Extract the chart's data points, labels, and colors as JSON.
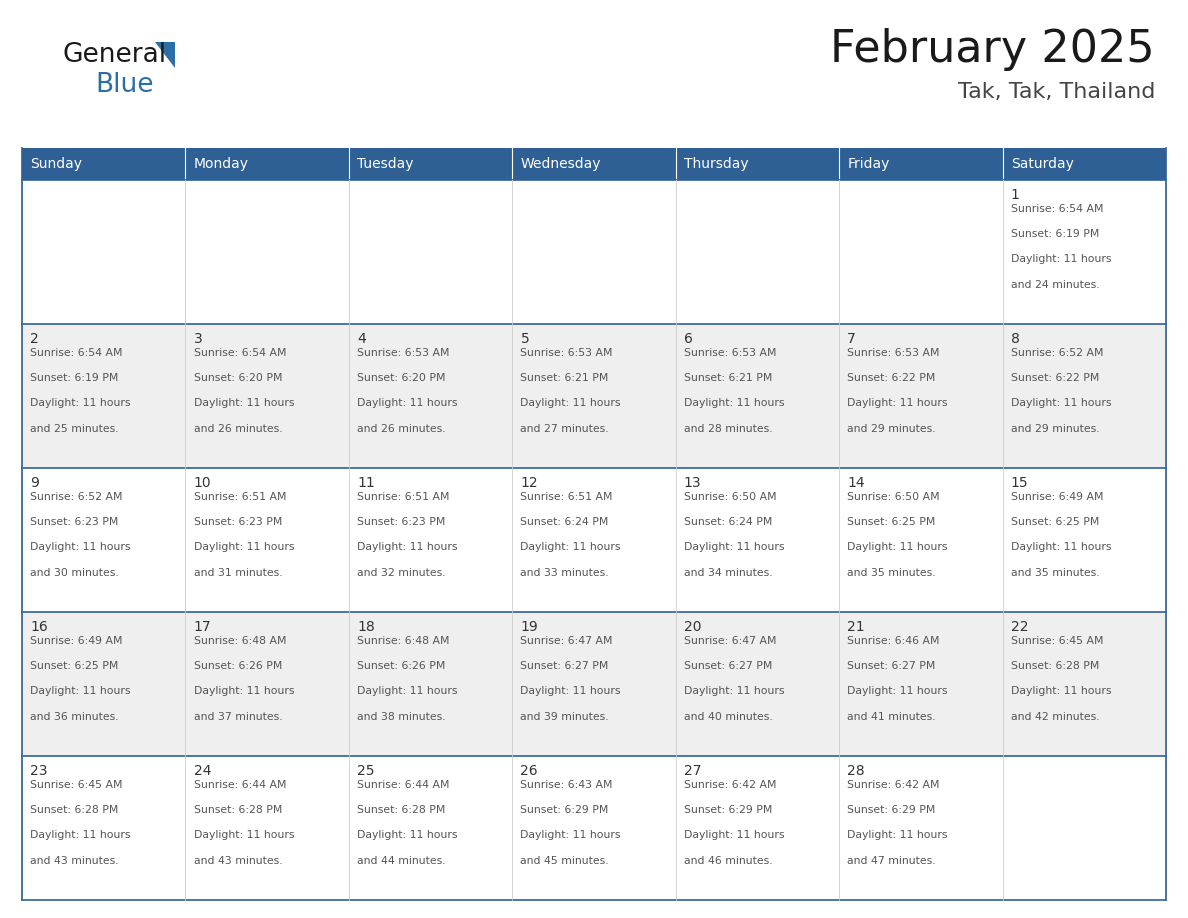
{
  "title": "February 2025",
  "subtitle": "Tak, Tak, Thailand",
  "header_bg": "#2E6096",
  "header_text_color": "#FFFFFF",
  "cell_bg_white": "#FFFFFF",
  "cell_bg_light": "#EFEFEF",
  "border_color": "#2E6096",
  "text_color": "#333333",
  "days_of_week": [
    "Sunday",
    "Monday",
    "Tuesday",
    "Wednesday",
    "Thursday",
    "Friday",
    "Saturday"
  ],
  "calendar_data": [
    [
      null,
      null,
      null,
      null,
      null,
      null,
      {
        "day": 1,
        "sunrise": "6:54 AM",
        "sunset": "6:19 PM",
        "daylight_hours": 11,
        "daylight_minutes": 24
      }
    ],
    [
      {
        "day": 2,
        "sunrise": "6:54 AM",
        "sunset": "6:19 PM",
        "daylight_hours": 11,
        "daylight_minutes": 25
      },
      {
        "day": 3,
        "sunrise": "6:54 AM",
        "sunset": "6:20 PM",
        "daylight_hours": 11,
        "daylight_minutes": 26
      },
      {
        "day": 4,
        "sunrise": "6:53 AM",
        "sunset": "6:20 PM",
        "daylight_hours": 11,
        "daylight_minutes": 26
      },
      {
        "day": 5,
        "sunrise": "6:53 AM",
        "sunset": "6:21 PM",
        "daylight_hours": 11,
        "daylight_minutes": 27
      },
      {
        "day": 6,
        "sunrise": "6:53 AM",
        "sunset": "6:21 PM",
        "daylight_hours": 11,
        "daylight_minutes": 28
      },
      {
        "day": 7,
        "sunrise": "6:53 AM",
        "sunset": "6:22 PM",
        "daylight_hours": 11,
        "daylight_minutes": 29
      },
      {
        "day": 8,
        "sunrise": "6:52 AM",
        "sunset": "6:22 PM",
        "daylight_hours": 11,
        "daylight_minutes": 29
      }
    ],
    [
      {
        "day": 9,
        "sunrise": "6:52 AM",
        "sunset": "6:23 PM",
        "daylight_hours": 11,
        "daylight_minutes": 30
      },
      {
        "day": 10,
        "sunrise": "6:51 AM",
        "sunset": "6:23 PM",
        "daylight_hours": 11,
        "daylight_minutes": 31
      },
      {
        "day": 11,
        "sunrise": "6:51 AM",
        "sunset": "6:23 PM",
        "daylight_hours": 11,
        "daylight_minutes": 32
      },
      {
        "day": 12,
        "sunrise": "6:51 AM",
        "sunset": "6:24 PM",
        "daylight_hours": 11,
        "daylight_minutes": 33
      },
      {
        "day": 13,
        "sunrise": "6:50 AM",
        "sunset": "6:24 PM",
        "daylight_hours": 11,
        "daylight_minutes": 34
      },
      {
        "day": 14,
        "sunrise": "6:50 AM",
        "sunset": "6:25 PM",
        "daylight_hours": 11,
        "daylight_minutes": 35
      },
      {
        "day": 15,
        "sunrise": "6:49 AM",
        "sunset": "6:25 PM",
        "daylight_hours": 11,
        "daylight_minutes": 35
      }
    ],
    [
      {
        "day": 16,
        "sunrise": "6:49 AM",
        "sunset": "6:25 PM",
        "daylight_hours": 11,
        "daylight_minutes": 36
      },
      {
        "day": 17,
        "sunrise": "6:48 AM",
        "sunset": "6:26 PM",
        "daylight_hours": 11,
        "daylight_minutes": 37
      },
      {
        "day": 18,
        "sunrise": "6:48 AM",
        "sunset": "6:26 PM",
        "daylight_hours": 11,
        "daylight_minutes": 38
      },
      {
        "day": 19,
        "sunrise": "6:47 AM",
        "sunset": "6:27 PM",
        "daylight_hours": 11,
        "daylight_minutes": 39
      },
      {
        "day": 20,
        "sunrise": "6:47 AM",
        "sunset": "6:27 PM",
        "daylight_hours": 11,
        "daylight_minutes": 40
      },
      {
        "day": 21,
        "sunrise": "6:46 AM",
        "sunset": "6:27 PM",
        "daylight_hours": 11,
        "daylight_minutes": 41
      },
      {
        "day": 22,
        "sunrise": "6:45 AM",
        "sunset": "6:28 PM",
        "daylight_hours": 11,
        "daylight_minutes": 42
      }
    ],
    [
      {
        "day": 23,
        "sunrise": "6:45 AM",
        "sunset": "6:28 PM",
        "daylight_hours": 11,
        "daylight_minutes": 43
      },
      {
        "day": 24,
        "sunrise": "6:44 AM",
        "sunset": "6:28 PM",
        "daylight_hours": 11,
        "daylight_minutes": 43
      },
      {
        "day": 25,
        "sunrise": "6:44 AM",
        "sunset": "6:28 PM",
        "daylight_hours": 11,
        "daylight_minutes": 44
      },
      {
        "day": 26,
        "sunrise": "6:43 AM",
        "sunset": "6:29 PM",
        "daylight_hours": 11,
        "daylight_minutes": 45
      },
      {
        "day": 27,
        "sunrise": "6:42 AM",
        "sunset": "6:29 PM",
        "daylight_hours": 11,
        "daylight_minutes": 46
      },
      {
        "day": 28,
        "sunrise": "6:42 AM",
        "sunset": "6:29 PM",
        "daylight_hours": 11,
        "daylight_minutes": 47
      },
      null
    ]
  ],
  "logo_general_color": "#1a1a1a",
  "logo_blue_color": "#2E6EA6",
  "logo_triangle_color": "#2E6EA6",
  "title_fontsize": 32,
  "subtitle_fontsize": 16,
  "header_fontsize": 10,
  "day_num_fontsize": 10,
  "cell_text_fontsize": 7.8
}
